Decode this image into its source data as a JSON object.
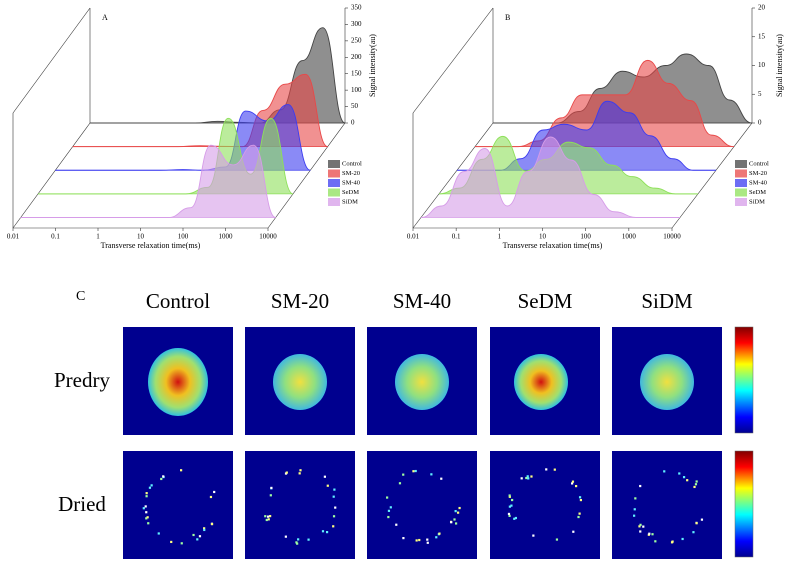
{
  "chart_data": [
    {
      "type": "waterfall",
      "panel": "A",
      "x_label": "Transverse relaxation time(ms)",
      "y_label": "Signal intensity(au)",
      "xscale": "log",
      "xlim": [
        0.01,
        10000
      ],
      "xticks": [
        0.01,
        0.1,
        1,
        10,
        100,
        1000,
        10000
      ],
      "ylim": [
        0,
        350
      ],
      "yticks": [
        0,
        50,
        100,
        150,
        200,
        250,
        300,
        350
      ],
      "x": [
        0.01,
        0.03,
        0.1,
        0.3,
        1,
        3,
        10,
        30,
        100,
        300,
        1000,
        3000,
        10000
      ],
      "series": [
        {
          "name": "Control",
          "color": "#444444",
          "values": [
            0,
            0,
            0,
            0,
            0,
            0,
            5,
            2,
            0,
            40,
            190,
            290,
            0
          ]
        },
        {
          "name": "SM-20",
          "color": "#e84848",
          "values": [
            0,
            0,
            0,
            0,
            0,
            0,
            3,
            1,
            0,
            110,
            190,
            220,
            0
          ]
        },
        {
          "name": "SM-40",
          "color": "#3c3cf0",
          "values": [
            0,
            0,
            0,
            0,
            0,
            0,
            2,
            0,
            10,
            180,
            150,
            200,
            0
          ]
        },
        {
          "name": "SeDM",
          "color": "#8ee05a",
          "values": [
            0,
            0,
            0,
            0,
            0,
            0,
            0,
            0,
            20,
            230,
            60,
            230,
            0
          ]
        },
        {
          "name": "SiDM",
          "color": "#d69ce8",
          "values": [
            0,
            0,
            0,
            0,
            0,
            0,
            0,
            0,
            30,
            220,
            160,
            220,
            0
          ]
        }
      ]
    },
    {
      "type": "waterfall",
      "panel": "B",
      "x_label": "Transverse relaxation time(ms)",
      "y_label": "Signal intensity(au)",
      "xscale": "log",
      "xlim": [
        0.01,
        10000
      ],
      "xticks": [
        0.01,
        0.1,
        1,
        10,
        100,
        1000,
        10000
      ],
      "ylim": [
        0,
        20
      ],
      "yticks": [
        0,
        5,
        10,
        15,
        20
      ],
      "x": [
        0.01,
        0.03,
        0.1,
        0.3,
        1,
        3,
        10,
        30,
        100,
        300,
        1000,
        3000,
        10000
      ],
      "series": [
        {
          "name": "Control",
          "color": "#444444",
          "values": [
            0,
            0,
            0,
            0,
            2,
            6,
            9,
            8,
            10,
            12,
            10,
            4,
            0
          ]
        },
        {
          "name": "SM-20",
          "color": "#e84848",
          "values": [
            0,
            0,
            0,
            1,
            5,
            9,
            9,
            9,
            15,
            11,
            8,
            2,
            0
          ]
        },
        {
          "name": "SM-40",
          "color": "#3c3cf0",
          "values": [
            0,
            0,
            0,
            2,
            7,
            8,
            7,
            12,
            10,
            6,
            2,
            0,
            0
          ]
        },
        {
          "name": "SeDM",
          "color": "#8ee05a",
          "values": [
            0,
            1,
            6,
            10,
            4,
            6,
            9,
            8,
            5,
            3,
            1,
            0,
            0
          ]
        },
        {
          "name": "SiDM",
          "color": "#d69ce8",
          "values": [
            0,
            2,
            8,
            12,
            2,
            8,
            14,
            10,
            4,
            1,
            0,
            0,
            0
          ]
        }
      ]
    }
  ],
  "images": {
    "panel": "C",
    "columns": [
      "Control",
      "SM-20",
      "SM-40",
      "SeDM",
      "SiDM"
    ],
    "rows": [
      "Predry",
      "Dried"
    ]
  }
}
